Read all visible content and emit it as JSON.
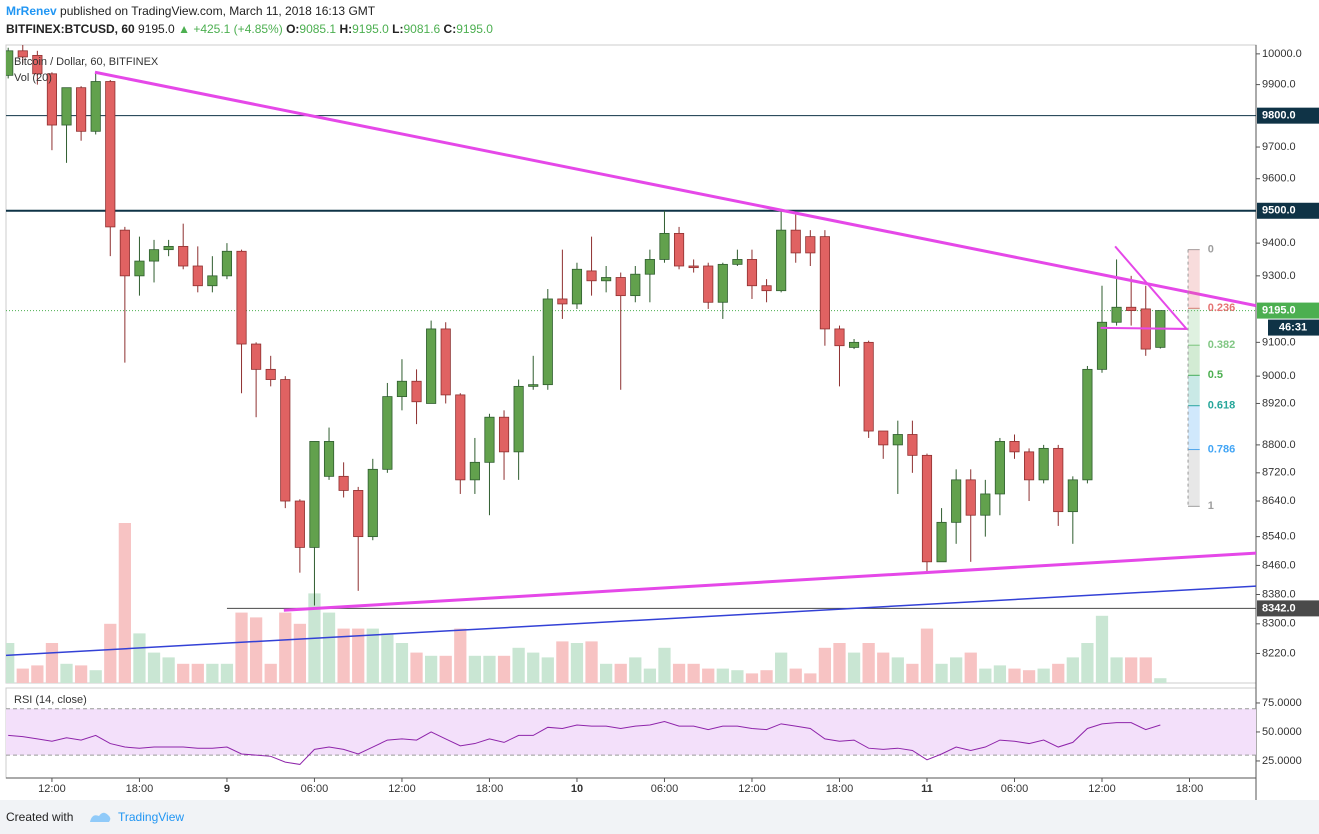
{
  "header": {
    "author": "MrRenev",
    "published": "published on TradingView.com, March 11, 2018 16:13 GMT"
  },
  "footer": {
    "created": "Created with",
    "brand": "TradingView"
  },
  "chart_data": {
    "type": "candlestick",
    "quote": {
      "symbol": "BITFINEX:BTCUSD, 60",
      "price": "9195.0",
      "arrow": "▲",
      "change": "+425.1 (+4.85%)",
      "fields": [
        {
          "key": "O:",
          "value": "9085.1"
        },
        {
          "key": "H:",
          "value": "9195.0"
        },
        {
          "key": "L:",
          "value": "9081.6"
        },
        {
          "key": "C:",
          "value": "9195.0"
        }
      ]
    },
    "legend": {
      "main": "Bitcoin / Dollar, 60, BITFINEX",
      "volume": "Vol (20)"
    },
    "log": true,
    "xlim": [
      8.85,
      94.56
    ],
    "ylim": [
      8141,
      10029
    ],
    "xticks": [
      {
        "value": 12,
        "label": "12:00"
      },
      {
        "value": 18,
        "label": "18:00"
      },
      {
        "value": 24,
        "label": "9"
      },
      {
        "value": 30,
        "label": "06:00"
      },
      {
        "value": 36,
        "label": "12:00"
      },
      {
        "value": 42,
        "label": "18:00"
      },
      {
        "value": 48,
        "label": "10"
      },
      {
        "value": 54,
        "label": "06:00"
      },
      {
        "value": 60,
        "label": "12:00"
      },
      {
        "value": 66,
        "label": "18:00"
      },
      {
        "value": 72,
        "label": "11"
      },
      {
        "value": 78,
        "label": "06:00"
      },
      {
        "value": 84,
        "label": "12:00"
      },
      {
        "value": 90,
        "label": "18:00"
      }
    ],
    "yticks": [
      {
        "value": 10000,
        "label": "10000.0"
      },
      {
        "value": 9900,
        "label": "9900.0"
      },
      {
        "value": 9700,
        "label": "9700.0"
      },
      {
        "value": 9600,
        "label": "9600.0"
      },
      {
        "value": 9400,
        "label": "9400.0"
      },
      {
        "value": 9300,
        "label": "9300.0"
      },
      {
        "value": 9100,
        "label": "9100.0"
      },
      {
        "value": 9000,
        "label": "9000.0"
      },
      {
        "value": 8920,
        "label": "8920.0"
      },
      {
        "value": 8800,
        "label": "8800.0"
      },
      {
        "value": 8720,
        "label": "8720.0"
      },
      {
        "value": 8640,
        "label": "8640.0"
      },
      {
        "value": 8540,
        "label": "8540.0"
      },
      {
        "value": 8460,
        "label": "8460.0"
      },
      {
        "value": 8380,
        "label": "8380.0"
      },
      {
        "value": 8300,
        "label": "8300.0"
      },
      {
        "value": 8220,
        "label": "8220.0"
      }
    ],
    "colors": {
      "up": "#62a14d",
      "down": "#e06262",
      "up_border": "#2f5d2f",
      "down_border": "#8e3030",
      "volume_up": "#c9e6d3",
      "volume_down": "#f7c3c3"
    },
    "x": [
      9,
      10,
      11,
      12,
      13,
      14,
      15,
      16,
      17,
      18,
      19,
      20,
      21,
      22,
      23,
      24,
      25,
      26,
      27,
      28,
      29,
      30,
      31,
      32,
      33,
      34,
      35,
      36,
      37,
      38,
      39,
      40,
      41,
      42,
      43,
      44,
      45,
      46,
      47,
      48,
      49,
      50,
      51,
      52,
      53,
      54,
      55,
      56,
      57,
      58,
      59,
      60,
      61,
      62,
      63,
      64,
      65,
      66,
      67,
      68,
      69,
      70,
      71,
      72,
      73,
      74,
      75,
      76,
      77,
      78,
      79,
      80,
      81,
      82,
      83,
      84,
      85,
      86,
      87,
      88
    ],
    "open": [
      9930,
      10010,
      9995,
      9935,
      9770,
      9890,
      9750,
      9910,
      9440,
      9300,
      9345,
      9380,
      9390,
      9330,
      9270,
      9300,
      9375,
      9095,
      9020,
      8990,
      8640,
      8510,
      8710,
      8710,
      8670,
      8540,
      8730,
      8940,
      8985,
      8920,
      9140,
      8945,
      8700,
      8750,
      8880,
      8780,
      8970,
      8975,
      9230,
      9215,
      9315,
      9285,
      9295,
      9240,
      9305,
      9350,
      9430,
      9330,
      9330,
      9220,
      9335,
      9350,
      9270,
      9255,
      9440,
      9420,
      9420,
      9140,
      9085,
      9100,
      8840,
      8800,
      8830,
      8770,
      8470,
      8580,
      8700,
      8600,
      8660,
      8810,
      8780,
      8700,
      8790,
      8610,
      8700,
      9020,
      9160,
      9205,
      9200,
      9085.1
    ],
    "high": [
      10020,
      10029,
      10010,
      9940,
      9890,
      9895,
      9940,
      9915,
      9450,
      9420,
      9410,
      9410,
      9460,
      9390,
      9360,
      9400,
      9380,
      9100,
      9060,
      9000,
      8645,
      8810,
      8850,
      8750,
      8680,
      8760,
      8980,
      9050,
      9020,
      9165,
      9160,
      8950,
      8820,
      8890,
      8900,
      8990,
      9060,
      9260,
      9380,
      9340,
      9420,
      9330,
      9310,
      9330,
      9380,
      9500,
      9450,
      9350,
      9340,
      9340,
      9380,
      9380,
      9290,
      9500,
      9490,
      9440,
      9440,
      9150,
      9110,
      9105,
      8840,
      8870,
      8870,
      8775,
      8620,
      8730,
      8730,
      8700,
      8820,
      8830,
      8790,
      8800,
      8800,
      8710,
      9030,
      9270,
      9350,
      9300,
      9270,
      9195
    ],
    "low": [
      9920,
      9970,
      9900,
      9690,
      9650,
      9720,
      9740,
      9360,
      9040,
      9240,
      9280,
      9360,
      9320,
      9250,
      9250,
      9290,
      8950,
      8880,
      8970,
      8620,
      8440,
      8350,
      8700,
      8650,
      8390,
      8530,
      8720,
      8900,
      8860,
      8920,
      8920,
      8660,
      8660,
      8600,
      8700,
      8700,
      8960,
      8960,
      9170,
      9200,
      9240,
      9250,
      8960,
      9220,
      9220,
      9340,
      9320,
      9310,
      9200,
      9170,
      9330,
      9230,
      9220,
      9250,
      9340,
      9330,
      9090,
      8970,
      9080,
      8820,
      8760,
      8660,
      8720,
      8440,
      8470,
      8520,
      8470,
      8540,
      8600,
      8760,
      8640,
      8690,
      8570,
      8520,
      8690,
      9010,
      9150,
      9150,
      9060,
      9081.6
    ],
    "close": [
      10010,
      9990,
      9935,
      9770,
      9890,
      9750,
      9910,
      9450,
      9300,
      9345,
      9380,
      9390,
      9330,
      9270,
      9300,
      9375,
      9095,
      9020,
      8990,
      8640,
      8510,
      8810,
      8810,
      8670,
      8540,
      8730,
      8940,
      8985,
      8925,
      9140,
      8945,
      8700,
      8750,
      8880,
      8780,
      8970,
      8975,
      9230,
      9215,
      9320,
      9285,
      9295,
      9240,
      9305,
      9350,
      9430,
      9330,
      9325,
      9220,
      9335,
      9350,
      9270,
      9255,
      9440,
      9370,
      9370,
      9140,
      9090,
      9100,
      8840,
      8800,
      8830,
      8770,
      8470,
      8580,
      8700,
      8600,
      8660,
      8810,
      8780,
      8700,
      8790,
      8610,
      8700,
      9020,
      9160,
      9205,
      9195,
      9080,
      9195
    ],
    "volume_ylim": [
      0,
      100
    ],
    "volume": [
      25,
      9,
      11,
      25,
      12,
      11,
      8,
      37,
      100,
      31,
      19,
      16,
      12,
      12,
      12,
      12,
      44,
      41,
      12,
      44,
      37,
      56,
      44,
      34,
      34,
      34,
      31,
      25,
      19,
      17,
      17,
      34,
      17,
      17,
      17,
      22,
      19,
      16,
      26,
      25,
      26,
      12,
      12,
      16,
      9,
      22,
      12,
      12,
      9,
      9,
      8,
      6,
      8,
      19,
      9,
      6,
      22,
      25,
      19,
      25,
      19,
      16,
      12,
      34,
      12,
      16,
      19,
      9,
      11,
      9,
      8,
      9,
      12,
      16,
      25,
      42,
      16,
      16,
      16,
      3
    ],
    "hlines": [
      {
        "value": 9800,
        "label": "9800.0",
        "color": "#0f3346",
        "width": 1,
        "from": 8.85
      },
      {
        "value": 9500,
        "label": "9500.0",
        "color": "#0f3346",
        "width": 2,
        "from": 8.85
      },
      {
        "value": 8342,
        "label": "8342.0",
        "color": "#4a4a4a",
        "width": 1,
        "from": 24
      }
    ],
    "current": {
      "value": 9195,
      "label": "9195.0",
      "countdown": "46:31",
      "color": "#4caf50"
    },
    "trendlines": [
      {
        "x": [
          14.95,
          94.56
        ],
        "y": [
          9940,
          9210
        ],
        "color": "#e548e8",
        "width": 3
      },
      {
        "x": [
          27.9,
          94.56
        ],
        "y": [
          8337,
          8494
        ],
        "color": "#e548e8",
        "width": 3
      },
      {
        "x": [
          8.85,
          94.56
        ],
        "y": [
          8215,
          8403
        ],
        "color": "#3341d6",
        "width": 1.5
      },
      {
        "x": [
          83.9,
          89.8,
          84.9
        ],
        "y": [
          9143,
          9140,
          9390
        ],
        "color": "#e548e8",
        "width": 2
      }
    ],
    "fib": {
      "x": [
        89.9,
        90.7
      ],
      "high": 9380,
      "low": 8625,
      "levels": [
        0,
        0.236,
        0.382,
        0.5,
        0.618,
        0.786,
        1
      ],
      "colors": [
        "#9e9e9e",
        "#e57373",
        "#81c784",
        "#4caf50",
        "#26a69a",
        "#42a5f5",
        "#9e9e9e"
      ]
    },
    "rsi": {
      "title": "RSI (14, close)",
      "color": "#8e24aa",
      "band": [
        30,
        70
      ],
      "ylim": [
        10.3,
        87.9
      ],
      "yticks": [
        {
          "value": 75,
          "label": "75.0000"
        },
        {
          "value": 50,
          "label": "50.0000"
        },
        {
          "value": 25,
          "label": "25.0000"
        }
      ],
      "values": [
        47,
        46,
        44,
        42,
        45,
        43,
        47,
        40,
        37,
        36,
        37,
        37,
        37,
        36,
        36,
        37,
        31,
        30,
        29,
        24,
        22,
        35,
        37,
        35,
        31,
        37,
        43,
        44,
        43,
        50,
        44,
        38,
        40,
        44,
        41,
        47,
        47,
        54,
        53,
        56,
        55,
        55,
        53,
        55,
        56,
        59,
        55,
        55,
        52,
        55,
        55,
        53,
        52,
        57,
        55,
        53,
        44,
        42,
        43,
        36,
        35,
        36,
        34,
        26,
        31,
        37,
        34,
        37,
        43,
        42,
        40,
        43,
        37,
        41,
        53,
        57,
        58,
        58,
        52,
        56
      ]
    }
  }
}
